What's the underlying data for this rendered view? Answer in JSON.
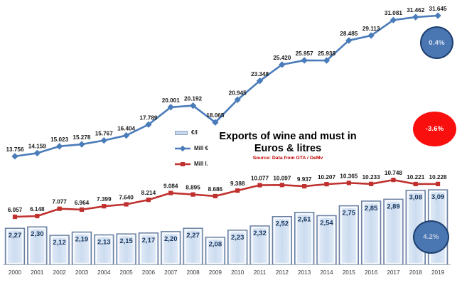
{
  "title": {
    "line1": "Exports of wine and must in",
    "line2": "Euros & litres",
    "source": "Source: Data from GTA / OeMv"
  },
  "badges": [
    {
      "text": "0.4%",
      "fill": "#4a76b2",
      "text_color": "#d8e3f2",
      "border_color": "#1d3f6e"
    },
    {
      "text": "-3.6%",
      "fill": "#fa0f0f",
      "text_color": "#ffffff",
      "border_color": null
    },
    {
      "text": "4.2%",
      "fill": "#4a76b2",
      "text_color": "#c3d0e2",
      "border_color": "#1d3f6e"
    }
  ],
  "chart_data": {
    "type": "combo",
    "title": "Exports of wine and must in Euros & litres",
    "categories": [
      "2000",
      "2001",
      "2002",
      "2003",
      "2004",
      "2005",
      "2006",
      "2007",
      "2008",
      "2009",
      "2010",
      "2011",
      "2012",
      "2013",
      "2014",
      "2015",
      "2016",
      "2017",
      "2018",
      "2019"
    ],
    "series": [
      {
        "name": "€/l",
        "type": "bar",
        "color": "#c6d8ee",
        "values": [
          2.27,
          2.3,
          2.12,
          2.19,
          2.13,
          2.15,
          2.17,
          2.2,
          2.27,
          2.08,
          2.23,
          2.32,
          2.52,
          2.61,
          2.54,
          2.75,
          2.85,
          2.89,
          3.08,
          3.09
        ],
        "labels": [
          "2,27",
          "2,30",
          "2,12",
          "2,19",
          "2,13",
          "2,15",
          "2,17",
          "2,20",
          "2,27",
          "2,08",
          "2,23",
          "2,32",
          "2,52",
          "2,61",
          "2,54",
          "2,75",
          "2,85",
          "2,89",
          "3,08",
          "3,09"
        ]
      },
      {
        "name": "Mill €",
        "type": "line",
        "marker": "diamond",
        "color": "#4a7cba",
        "values": [
          13.756,
          14.159,
          15.023,
          15.278,
          15.767,
          16.404,
          17.789,
          20.001,
          20.192,
          18.065,
          20.945,
          23.348,
          25.42,
          25.957,
          25.938,
          28.485,
          29.113,
          31.081,
          31.462,
          31.645
        ],
        "labels": [
          "13.756",
          "14.159",
          "15.023",
          "15.278",
          "15.767",
          "16.404",
          "17.789",
          "20.001",
          "20.192",
          "18.065",
          "20.945",
          "23.348",
          "25.420",
          "25.957",
          "25.938",
          "28.485",
          "29.113",
          "31.081",
          "31.462",
          "31.645"
        ]
      },
      {
        "name": "Mill l.",
        "type": "line",
        "marker": "square",
        "color": "#bf312f",
        "values": [
          6.057,
          6.148,
          7.077,
          6.964,
          7.399,
          7.64,
          8.214,
          9.084,
          8.895,
          8.686,
          9.388,
          10.077,
          10.097,
          9.937,
          10.207,
          10.365,
          10.233,
          10.748,
          10.221,
          10.228
        ],
        "labels": [
          "6.057",
          "6.148",
          "7.077",
          "6.964",
          "7.399",
          "7.640",
          "8.214",
          "9.084",
          "8.895",
          "8.686",
          "9.388",
          "10.077",
          "10.097",
          "9.937",
          "10.207",
          "10.365",
          "10.233",
          "10.748",
          "10.221",
          "10.228"
        ]
      }
    ],
    "annotations": [
      {
        "text": "0.4%",
        "refers_to": "Mill €",
        "position": "top-right"
      },
      {
        "text": "-3.6%",
        "refers_to": "Mill l.",
        "position": "middle-right"
      },
      {
        "text": "4.2%",
        "refers_to": "€/l",
        "position": "bottom-right"
      }
    ],
    "axes": {
      "x_labels_visible": true,
      "y_axis_visible": false,
      "gridlines": false
    },
    "legend_position": "center-left"
  }
}
